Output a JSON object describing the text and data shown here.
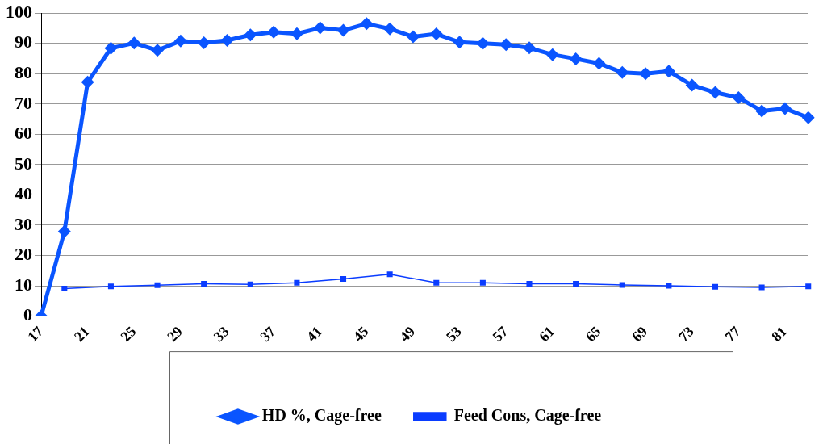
{
  "chart_data": {
    "type": "line",
    "categories": [
      "17",
      null,
      "21",
      null,
      "25",
      null,
      "29",
      null,
      "33",
      null,
      "37",
      null,
      "41",
      null,
      "45",
      null,
      "49",
      null,
      "53",
      null,
      "57",
      null,
      "61",
      null,
      "65",
      null,
      "69",
      null,
      "73",
      null,
      "77",
      null,
      "81",
      null
    ],
    "series": [
      {
        "name": "HD %, Cage-free",
        "color": "#0a55ff",
        "marker": "diamond",
        "values": [
          0,
          27.9,
          77.2,
          88.4,
          90.1,
          87.7,
          90.8,
          90.2,
          91.0,
          92.8,
          93.7,
          93.2,
          95.1,
          94.3,
          96.5,
          94.8,
          92.2,
          93.1,
          90.4,
          90.0,
          89.6,
          88.5,
          86.3,
          84.9,
          83.4,
          80.4,
          80.0,
          80.8,
          76.2,
          73.8,
          72.1,
          67.7,
          68.5,
          65.5
        ]
      },
      {
        "name": "Feed Cons, Cage-free",
        "color": "#0a3cff",
        "marker": "square",
        "values": [
          null,
          9.1,
          null,
          9.8,
          null,
          10.2,
          null,
          10.7,
          null,
          10.5,
          null,
          11.0,
          null,
          12.3,
          null,
          13.8,
          null,
          11.0,
          null,
          11.0,
          null,
          10.7,
          null,
          10.7,
          null,
          10.3,
          null,
          10.0,
          null,
          9.7,
          null,
          9.5,
          null,
          9.8
        ]
      }
    ],
    "ylim": [
      0,
      100
    ],
    "yticks": [
      0,
      10,
      20,
      30,
      40,
      50,
      60,
      70,
      80,
      90,
      100
    ],
    "grid": "y",
    "legend": "bottom",
    "line_style": "solid"
  }
}
